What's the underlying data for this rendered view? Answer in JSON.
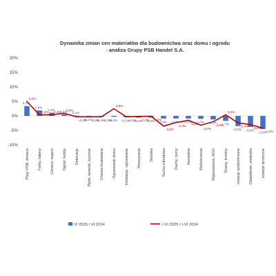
{
  "chart_data": {
    "type": "bar+line",
    "title_line1": "Dynamika zmian cen materiałów dla budownictwa oraz domu i ogrodu",
    "title_line2": "- analiza Grupy PSB Handel S.A.",
    "categories": [
      "Płyty OSB, drewno",
      "Farby, lakiery",
      "Cement, wapno",
      "Ogród, hobby",
      "Dekoracje",
      "Płytki, łazienki, kuchnie",
      "Chemia budowlana",
      "Ogrzewanie domu",
      "Instalacje, ogrzewanie",
      "Motoryzacja",
      "Stolarka",
      "Sucha zabudowa",
      "Dachy, rynny",
      "Narzędzia",
      "Wykończenia",
      "Wyposażenie, AGD",
      "Ściany, kominy",
      "Izolacje wodochronne",
      "Oświetlenie, elektryka",
      "Izolacje termiczne"
    ],
    "series": [
      {
        "name": "VI 2025 / VI 2024",
        "kind": "bar",
        "values": [
          3.4,
          1.9,
          1.1,
          0.5,
          0.1,
          -0.1,
          -0.3,
          -0.3,
          -0.5,
          -0.6,
          -0.6,
          -0.9,
          -0.9,
          -0.9,
          -1.0,
          -1.2,
          -1.7,
          -3.5,
          -3.8,
          -4.5
        ],
        "labels": [
          "3,4%",
          "1,9%",
          "1,1%",
          "0,5%",
          "0,1%",
          "-0,1%",
          "-0,3%",
          "-0,3%",
          "-0,5%",
          "-0,6%",
          "-0,6%",
          "-0,9%",
          "-0,9%",
          "-0,9%",
          "-1,0%",
          "-1,2%",
          "-1,7%",
          "-3,5%",
          "-3,8%",
          "-4,5%"
        ]
      },
      {
        "name": "I-VI 2025 / I-VI 2024",
        "kind": "line",
        "values": [
          5.0,
          0.4,
          0.4,
          0.9,
          -0.3,
          -0.3,
          -0.3,
          2.5,
          -0.3,
          -0.2,
          -0.1,
          -3.5,
          -2.3,
          -1.5,
          -3.2,
          -2.0,
          0.4,
          -2.4,
          -3.0,
          -4.2
        ],
        "labels": [
          "5,0%",
          "0,4%",
          "0,4%",
          "0,9%",
          "-0,3%",
          "-0,3%",
          "-0,3%",
          "2,5%",
          "-0,3%",
          "-0,2%",
          "-0,1%",
          "-3,5%",
          "-2,3%",
          "-1,5%",
          "-3,2%",
          "-2,0%",
          "0,4%",
          "-2,4%",
          "-3,0%",
          "-4,2%"
        ]
      }
    ],
    "ylim": [
      -10,
      20
    ],
    "yticks": [
      20,
      15,
      10,
      5,
      0,
      -5,
      -10
    ],
    "ytick_labels": [
      "20%",
      "15%",
      "10%",
      "5%",
      "0%",
      "-5%",
      "-10%"
    ],
    "grid": false,
    "legend_position": "bottom",
    "colors": {
      "bar": "#4472c4",
      "line": "#c00000",
      "axis": "#d9d9d9",
      "text": "#404040"
    }
  }
}
